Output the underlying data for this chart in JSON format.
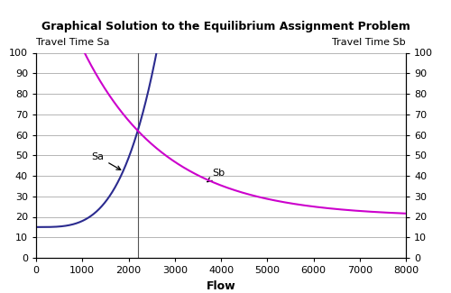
{
  "title": "Graphical Solution to the Equilibrium Assignment Problem",
  "ylabel_left": "Travel Time Sa",
  "ylabel_right": "Travel Time Sb",
  "xlabel": "Flow",
  "xlim": [
    0,
    8000
  ],
  "ylim": [
    0,
    100
  ],
  "xticks": [
    0,
    1000,
    2000,
    3000,
    4000,
    5000,
    6000,
    7000,
    8000
  ],
  "yticks": [
    0,
    10,
    20,
    30,
    40,
    50,
    60,
    70,
    80,
    90,
    100
  ],
  "Sa_color": "#2b2b8f",
  "Sb_color": "#cc00cc",
  "vline_x": 2200,
  "vline_color": "#555555",
  "Sa_annotation": "Sa",
  "Sb_annotation": "Sb",
  "background_color": "#ffffff",
  "grid_color": "#aaaaaa",
  "Sa_base": 15.0,
  "Sa_k": 9.42e-11,
  "Sa_exp": 3.5,
  "Sb_asymptote": 20.0,
  "Sb_A": 100.0,
  "Sb_b": 0.000404,
  "total_flow": 8000
}
